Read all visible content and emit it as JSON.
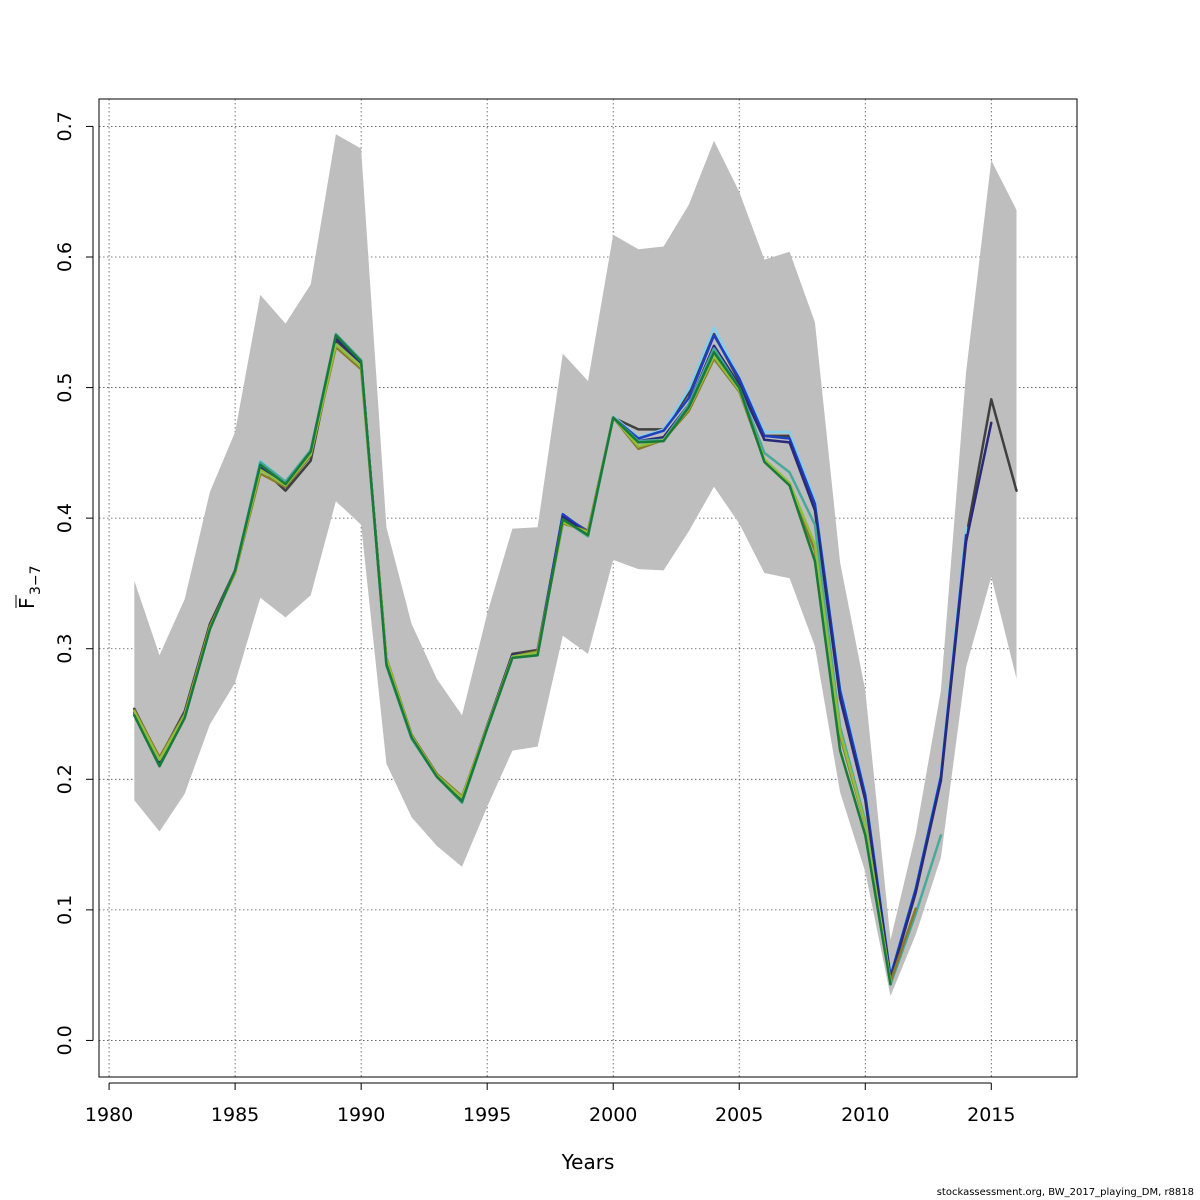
{
  "chart_data": {
    "type": "line",
    "xlabel": "Years",
    "ylabel_main": "F",
    "ylabel_sub": "3−7",
    "xlim": [
      1979.6,
      2018.4
    ],
    "ylim": [
      -0.028,
      0.721
    ],
    "xticks": [
      1980,
      1985,
      1990,
      1995,
      2000,
      2005,
      2010,
      2015
    ],
    "yticks": [
      0.0,
      0.1,
      0.2,
      0.3,
      0.4,
      0.5,
      0.6,
      0.7
    ],
    "ytick_labels": [
      "0.0",
      "0.1",
      "0.2",
      "0.3",
      "0.4",
      "0.5",
      "0.6",
      "0.7"
    ],
    "grid": true,
    "band_color": "#bebebe",
    "confidence_band": {
      "x": [
        1981,
        1982,
        1983,
        1984,
        1985,
        1986,
        1987,
        1988,
        1989,
        1990,
        1991,
        1992,
        1993,
        1994,
        1995,
        1996,
        1997,
        1998,
        1999,
        2000,
        2001,
        2002,
        2003,
        2004,
        2005,
        2006,
        2007,
        2008,
        2009,
        2010,
        2011,
        2012,
        2013,
        2014,
        2015,
        2016
      ],
      "upper": [
        0.352,
        0.295,
        0.338,
        0.42,
        0.466,
        0.571,
        0.549,
        0.579,
        0.694,
        0.683,
        0.393,
        0.319,
        0.277,
        0.249,
        0.327,
        0.392,
        0.393,
        0.526,
        0.505,
        0.617,
        0.606,
        0.608,
        0.64,
        0.689,
        0.65,
        0.598,
        0.604,
        0.55,
        0.366,
        0.268,
        0.077,
        0.158,
        0.268,
        0.512,
        0.674,
        0.636
      ],
      "lower": [
        0.184,
        0.16,
        0.189,
        0.242,
        0.274,
        0.339,
        0.324,
        0.341,
        0.413,
        0.395,
        0.212,
        0.171,
        0.149,
        0.133,
        0.179,
        0.222,
        0.225,
        0.31,
        0.296,
        0.368,
        0.361,
        0.36,
        0.39,
        0.424,
        0.396,
        0.358,
        0.354,
        0.302,
        0.19,
        0.129,
        0.034,
        0.081,
        0.14,
        0.286,
        0.355,
        0.277
      ]
    },
    "series": [
      {
        "color": "#404040",
        "width": 2.5,
        "x": [
          1981,
          1982,
          1983,
          1984,
          1985,
          1986,
          1987,
          1988,
          1989,
          1990,
          1991,
          1992,
          1993,
          1994,
          1995,
          1996,
          1997,
          1998,
          1999,
          2000,
          2001,
          2002,
          2003,
          2004,
          2005,
          2006,
          2007,
          2008,
          2009,
          2010,
          2011,
          2012,
          2013,
          2014,
          2015,
          2016
        ],
        "values": [
          0.254,
          0.216,
          0.252,
          0.319,
          0.36,
          0.439,
          0.421,
          0.444,
          0.536,
          0.519,
          0.292,
          0.234,
          0.204,
          0.186,
          0.241,
          0.296,
          0.299,
          0.402,
          0.39,
          0.477,
          0.468,
          0.468,
          0.496,
          0.541,
          0.505,
          0.463,
          0.463,
          0.412,
          0.268,
          0.188,
          0.05,
          0.115,
          0.201,
          0.385,
          0.491,
          0.421
        ]
      },
      {
        "color": "#87ceeb",
        "width": 2.5,
        "x": [
          1981,
          1982,
          1983,
          1984,
          1985,
          1986,
          1987,
          1988,
          1989,
          1990,
          1991,
          1992,
          1993,
          1994,
          1995,
          1996,
          1997,
          1998,
          1999,
          2000,
          2001,
          2002,
          2003,
          2004,
          2005,
          2006,
          2007,
          2008,
          2009,
          2010,
          2011,
          2012,
          2013,
          2014
        ],
        "values": [
          0.25,
          0.212,
          0.249,
          0.316,
          0.36,
          0.444,
          0.428,
          0.452,
          0.54,
          0.52,
          0.288,
          0.232,
          0.202,
          0.183,
          0.24,
          0.294,
          0.297,
          0.403,
          0.389,
          0.478,
          0.462,
          0.468,
          0.499,
          0.546,
          0.508,
          0.466,
          0.466,
          0.414,
          0.271,
          0.19,
          0.051,
          0.117,
          0.205,
          0.393
        ]
      },
      {
        "color": "#1f3fbf",
        "width": 2.5,
        "x": [
          1981,
          1982,
          1983,
          1984,
          1985,
          1986,
          1987,
          1988,
          1989,
          1990,
          1991,
          1992,
          1993,
          1994,
          1995,
          1996,
          1997,
          1998,
          1999,
          2000,
          2001,
          2002,
          2003,
          2004,
          2005,
          2006,
          2007,
          2008,
          2009,
          2010,
          2011,
          2012,
          2013,
          2014
        ],
        "values": [
          0.251,
          0.212,
          0.249,
          0.316,
          0.36,
          0.442,
          0.426,
          0.45,
          0.539,
          0.52,
          0.289,
          0.233,
          0.203,
          0.184,
          0.24,
          0.295,
          0.297,
          0.403,
          0.389,
          0.477,
          0.461,
          0.467,
          0.492,
          0.54,
          0.507,
          0.463,
          0.461,
          0.411,
          0.268,
          0.188,
          0.049,
          0.116,
          0.202,
          0.387
        ]
      },
      {
        "color": "#2a2a7a",
        "width": 2.5,
        "x": [
          1981,
          1982,
          1983,
          1984,
          1985,
          1986,
          1987,
          1988,
          1989,
          1990,
          1991,
          1992,
          1993,
          1994,
          1995,
          1996,
          1997,
          1998,
          1999,
          2000,
          2001,
          2002,
          2003,
          2004,
          2005,
          2006,
          2007,
          2008,
          2009,
          2010,
          2011,
          2012,
          2013,
          2014,
          2015
        ],
        "values": [
          0.251,
          0.212,
          0.249,
          0.316,
          0.36,
          0.44,
          0.424,
          0.448,
          0.538,
          0.519,
          0.29,
          0.233,
          0.203,
          0.185,
          0.24,
          0.295,
          0.297,
          0.401,
          0.388,
          0.477,
          0.459,
          0.462,
          0.487,
          0.532,
          0.502,
          0.46,
          0.458,
          0.406,
          0.262,
          0.184,
          0.047,
          0.113,
          0.199,
          0.382,
          0.473
        ]
      },
      {
        "color": "#4aa89a",
        "width": 2.5,
        "x": [
          1981,
          1982,
          1983,
          1984,
          1985,
          1986,
          1987,
          1988,
          1989,
          1990,
          1991,
          1992,
          1993,
          1994,
          1995,
          1996,
          1997,
          1998,
          1999,
          2000,
          2001,
          2002,
          2003,
          2004,
          2005,
          2006,
          2007,
          2008,
          2009,
          2010,
          2011,
          2012,
          2013
        ],
        "values": [
          0.249,
          0.21,
          0.247,
          0.315,
          0.36,
          0.443,
          0.428,
          0.452,
          0.541,
          0.521,
          0.287,
          0.231,
          0.202,
          0.182,
          0.239,
          0.293,
          0.295,
          0.399,
          0.386,
          0.477,
          0.459,
          0.46,
          0.487,
          0.53,
          0.5,
          0.45,
          0.435,
          0.395,
          0.24,
          0.168,
          0.043,
          0.097,
          0.157
        ]
      },
      {
        "color": "#8a7a2a",
        "width": 2.5,
        "x": [
          1981,
          1982,
          1983,
          1984,
          1985,
          1986,
          1987,
          1988,
          1989,
          1990,
          1991,
          1992,
          1993,
          1994,
          1995,
          1996,
          1997,
          1998,
          1999,
          2000,
          2001,
          2002,
          2003,
          2004,
          2005,
          2006,
          2007,
          2008,
          2009,
          2010,
          2011,
          2012
        ],
        "values": [
          0.253,
          0.217,
          0.25,
          0.317,
          0.358,
          0.434,
          0.424,
          0.448,
          0.531,
          0.514,
          0.293,
          0.234,
          0.204,
          0.187,
          0.24,
          0.294,
          0.298,
          0.396,
          0.39,
          0.477,
          0.453,
          0.46,
          0.482,
          0.522,
          0.497,
          0.444,
          0.425,
          0.375,
          0.233,
          0.165,
          0.045,
          0.101
        ]
      },
      {
        "color": "#8fbf3f",
        "width": 2.5,
        "x": [
          1981,
          1982,
          1983,
          1984,
          1985,
          1986,
          1987,
          1988,
          1989,
          1990,
          1991,
          1992,
          1993,
          1994,
          1995,
          1996,
          1997,
          1998,
          1999,
          2000,
          2001,
          2002,
          2003,
          2004,
          2005,
          2006,
          2007,
          2008,
          2009,
          2010,
          2011
        ],
        "values": [
          0.252,
          0.215,
          0.249,
          0.316,
          0.359,
          0.437,
          0.425,
          0.449,
          0.533,
          0.516,
          0.292,
          0.233,
          0.203,
          0.186,
          0.24,
          0.294,
          0.297,
          0.397,
          0.389,
          0.477,
          0.455,
          0.46,
          0.484,
          0.524,
          0.498,
          0.445,
          0.427,
          0.38,
          0.236,
          0.166,
          0.045
        ]
      },
      {
        "color": "#1a7a3a",
        "width": 2.5,
        "x": [
          1981,
          1982,
          1983,
          1984,
          1985,
          1986,
          1987,
          1988,
          1989,
          1990,
          1991,
          1992,
          1993,
          1994,
          1995,
          1996,
          1997,
          1998,
          1999,
          2000,
          2001,
          2002,
          2003,
          2004,
          2005,
          2006,
          2007,
          2008,
          2009,
          2010,
          2011
        ],
        "values": [
          0.249,
          0.21,
          0.247,
          0.315,
          0.36,
          0.441,
          0.426,
          0.451,
          0.54,
          0.52,
          0.288,
          0.232,
          0.202,
          0.183,
          0.239,
          0.293,
          0.295,
          0.399,
          0.387,
          0.477,
          0.458,
          0.459,
          0.485,
          0.527,
          0.5,
          0.443,
          0.425,
          0.367,
          0.222,
          0.157,
          0.043
        ]
      }
    ]
  },
  "footer": {
    "credit": "stockassessment.org, BW_2017_playing_DM, r8818"
  }
}
